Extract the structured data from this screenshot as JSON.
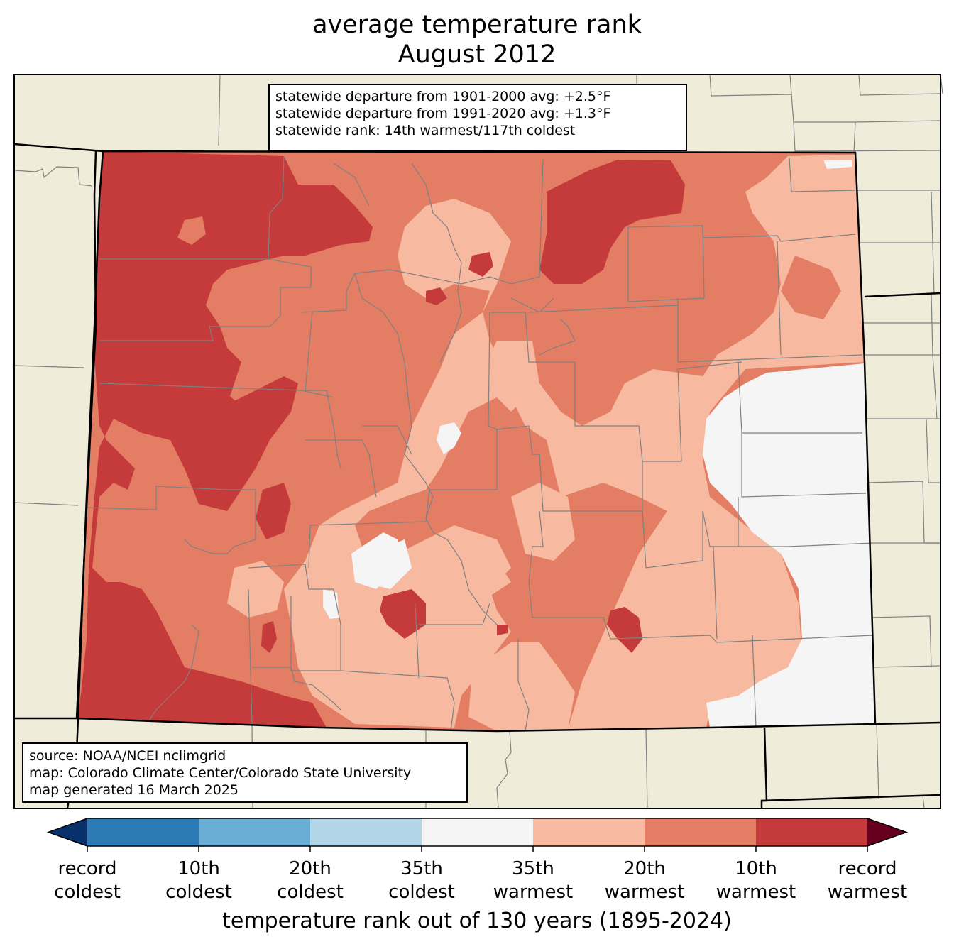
{
  "title": {
    "line1": "average temperature rank",
    "line2": "August 2012"
  },
  "stats": {
    "line1": "statewide departure from 1901-2000 avg: +2.5°F",
    "line2": "statewide departure from 1991-2020 avg: +1.3°F",
    "line3": "statewide rank: 14th warmest/117th coldest"
  },
  "credits": {
    "line1": "source: NOAA/NCEI nclimgrid",
    "line2": "map: Colorado Climate Center/Colorado State University",
    "line3": "map generated 16 March 2025"
  },
  "colorbar": {
    "title": "temperature rank out of 130 years (1895-2024)",
    "labels": [
      {
        "line1": "record",
        "line2": "coldest"
      },
      {
        "line1": "10th",
        "line2": "coldest"
      },
      {
        "line1": "20th",
        "line2": "coldest"
      },
      {
        "line1": "35th",
        "line2": "coldest"
      },
      {
        "line1": "35th",
        "line2": "warmest"
      },
      {
        "line1": "20th",
        "line2": "warmest"
      },
      {
        "line1": "10th",
        "line2": "warmest"
      },
      {
        "line1": "record",
        "line2": "warmest"
      }
    ],
    "colors": [
      "#2c7bb6",
      "#6aaed6",
      "#b3d5e8",
      "#f5f5f5",
      "#f7baa0",
      "#e37d63",
      "#c53a3a"
    ],
    "extend_colors": {
      "low": "#08306b",
      "high": "#67001f"
    }
  },
  "map_colors": {
    "background": "#efedda",
    "state_border": "#000000",
    "county_lines": "#808080"
  }
}
